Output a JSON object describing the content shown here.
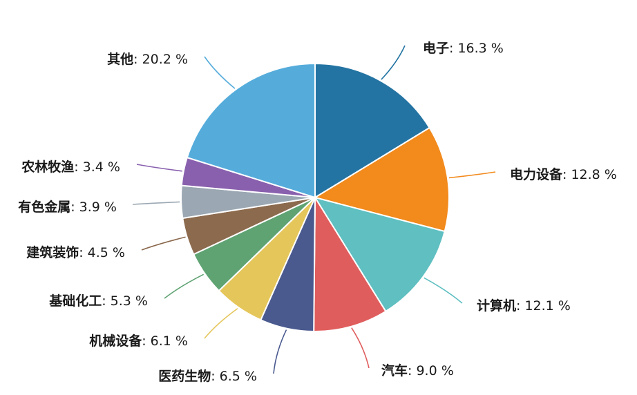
{
  "chart_data": {
    "type": "pie",
    "title": "",
    "slices": [
      {
        "name": "电子",
        "value": 16.3,
        "label_value": "16.3 %",
        "color": "#2474a3"
      },
      {
        "name": "电力设备",
        "value": 12.8,
        "label_value": "12.8 %",
        "color": "#f28a1c"
      },
      {
        "name": "计算机",
        "value": 12.1,
        "label_value": "12.1 %",
        "color": "#5fbfc1"
      },
      {
        "name": "汽车",
        "value": 9.0,
        "label_value": "9.0 %",
        "color": "#e05d5d"
      },
      {
        "name": "医药生物",
        "value": 6.5,
        "label_value": "6.5 %",
        "color": "#4a5a8f"
      },
      {
        "name": "机械设备",
        "value": 6.1,
        "label_value": "6.1 %",
        "color": "#e5c65a"
      },
      {
        "name": "基础化工",
        "value": 5.3,
        "label_value": "5.3 %",
        "color": "#5fa373"
      },
      {
        "name": "建筑装饰",
        "value": 4.5,
        "label_value": "4.5 %",
        "color": "#8c6a4e"
      },
      {
        "name": "有色金属",
        "value": 3.9,
        "label_value": "3.9 %",
        "color": "#9ba8b3"
      },
      {
        "name": "农林牧渔",
        "value": 3.4,
        "label_value": "3.4 %",
        "color": "#8960ae"
      },
      {
        "name": "其他",
        "value": 20.2,
        "label_value": "20.2 %",
        "color": "#55acdb"
      }
    ]
  }
}
